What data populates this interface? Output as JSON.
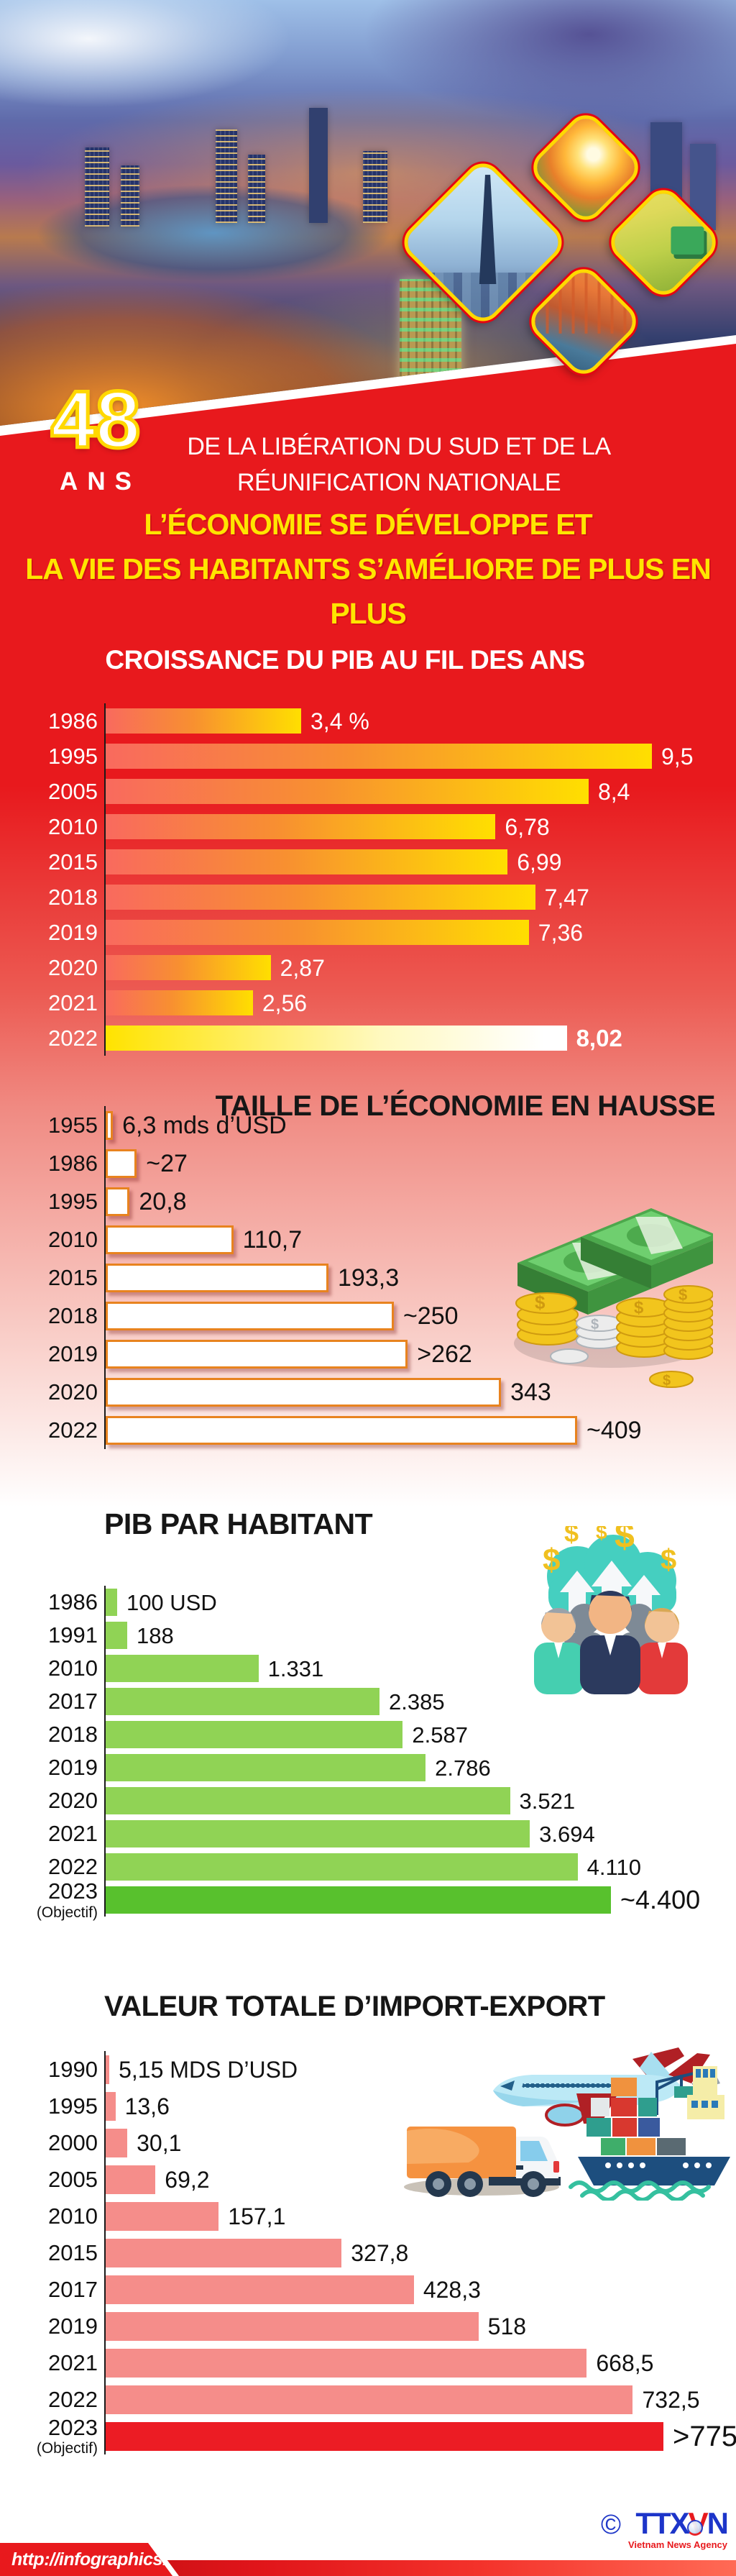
{
  "header": {
    "years_number": "48",
    "years_label": "ANS",
    "dedication_line1": "DE LA LIBÉRATION DU SUD ET DE LA",
    "dedication_line2": "RÉUNIFICATION NATIONALE",
    "banner_line1": "L’ÉCONOMIE SE DÉVELOPPE ET",
    "banner_line2": "LA VIE DES HABITANTS S’AMÉLIORE DE PLUS EN PLUS"
  },
  "photo": {
    "icons": [
      "city-night-panorama",
      "skyscraper-photo",
      "welding-photo",
      "harvest-photo",
      "port-photo"
    ]
  },
  "colors": {
    "red": "#e8191d",
    "banner_yellow": "#ffe500",
    "diamond_border_yellow": "#ffd900",
    "diamond_ring_red": "#e30613",
    "bar_gradient_start": "#f96a5e",
    "bar_gradient_end": "#ffdf00",
    "bar_white_border_orange": "#e8831f",
    "green_bar": "#90d355",
    "green_bar_dark": "#58c12d",
    "salmon_bar": "#f58d8a",
    "red_bar": "#ec1c24",
    "logo_blue": "#1d35c9"
  },
  "chart_data": [
    {
      "id": "gdp-growth",
      "type": "bar",
      "orientation": "horizontal",
      "title": "CROISSANCE DU PIB AU FIL DES ANS",
      "unit": "%",
      "xmax": 9.5,
      "grid": false,
      "rows": [
        {
          "year": "1986",
          "value": 3.4,
          "label": "3,4 %"
        },
        {
          "year": "1995",
          "value": 9.5,
          "label": "9,5"
        },
        {
          "year": "2005",
          "value": 8.4,
          "label": "8,4"
        },
        {
          "year": "2010",
          "value": 6.78,
          "label": "6,78"
        },
        {
          "year": "2015",
          "value": 6.99,
          "label": "6,99"
        },
        {
          "year": "2018",
          "value": 7.47,
          "label": "7,47"
        },
        {
          "year": "2019",
          "value": 7.36,
          "label": "7,36"
        },
        {
          "year": "2020",
          "value": 2.87,
          "label": "2,87"
        },
        {
          "year": "2021",
          "value": 2.56,
          "label": "2,56"
        },
        {
          "year": "2022",
          "value": 8.02,
          "label": "8,02",
          "highlight": true
        }
      ]
    },
    {
      "id": "economy-size",
      "type": "bar",
      "orientation": "horizontal",
      "title": "TAILLE DE L’ÉCONOMIE EN HAUSSE",
      "unit": "mds d’USD",
      "xmax": 409,
      "grid": false,
      "rows": [
        {
          "year": "1955",
          "value": 6.3,
          "label": "6,3 mds d’USD"
        },
        {
          "year": "1986",
          "value": 27,
          "label": "~27"
        },
        {
          "year": "1995",
          "value": 20.8,
          "label": "20,8"
        },
        {
          "year": "2010",
          "value": 110.7,
          "label": "110,7"
        },
        {
          "year": "2015",
          "value": 193.3,
          "label": "193,3"
        },
        {
          "year": "2018",
          "value": 250,
          "label": "~250"
        },
        {
          "year": "2019",
          "value": 262,
          "label": ">262"
        },
        {
          "year": "2020",
          "value": 343,
          "label": "343"
        },
        {
          "year": "2022",
          "value": 409,
          "label": "~409"
        }
      ]
    },
    {
      "id": "gdp-per-capita",
      "type": "bar",
      "orientation": "horizontal",
      "title": "PIB PAR HABITANT",
      "unit": "USD",
      "xmax": 4400,
      "grid": false,
      "rows": [
        {
          "year": "1986",
          "value": 100,
          "label": "100 USD"
        },
        {
          "year": "1991",
          "value": 188,
          "label": "188"
        },
        {
          "year": "2010",
          "value": 1331,
          "label": "1.331"
        },
        {
          "year": "2017",
          "value": 2385,
          "label": "2.385"
        },
        {
          "year": "2018",
          "value": 2587,
          "label": "2.587"
        },
        {
          "year": "2019",
          "value": 2786,
          "label": "2.786"
        },
        {
          "year": "2020",
          "value": 3521,
          "label": "3.521"
        },
        {
          "year": "2021",
          "value": 3694,
          "label": "3.694"
        },
        {
          "year": "2022",
          "value": 4110,
          "label": "4.110"
        },
        {
          "year": "2023",
          "sublabel": "(Objectif)",
          "value": 4400,
          "label": "~4.400",
          "highlight": true
        }
      ]
    },
    {
      "id": "import-export",
      "type": "bar",
      "orientation": "horizontal",
      "title": "VALEUR TOTALE D’IMPORT-EXPORT",
      "unit": "MDS D’USD",
      "xmax": 775,
      "grid": false,
      "rows": [
        {
          "year": "1990",
          "value": 5.15,
          "label": "5,15 MDS D’USD"
        },
        {
          "year": "1995",
          "value": 13.6,
          "label": "13,6"
        },
        {
          "year": "2000",
          "value": 30.1,
          "label": "30,1"
        },
        {
          "year": "2005",
          "value": 69.2,
          "label": "69,2"
        },
        {
          "year": "2010",
          "value": 157.1,
          "label": "157,1"
        },
        {
          "year": "2015",
          "value": 327.8,
          "label": "327,8"
        },
        {
          "year": "2017",
          "value": 428.3,
          "label": "428,3"
        },
        {
          "year": "2019",
          "value": 518,
          "label": "518"
        },
        {
          "year": "2021",
          "value": 668.5,
          "label": "668,5"
        },
        {
          "year": "2022",
          "value": 732.5,
          "label": "732,5"
        },
        {
          "year": "2023",
          "sublabel": "(Objectif)",
          "value": 775,
          "label": ">775",
          "highlight": true
        }
      ]
    }
  ],
  "footer": {
    "url": "http://infographics.vn",
    "copyright": "©",
    "logo": {
      "ttx": "TTX",
      "v": "V",
      "n": "N",
      "tagline": "Vietnam News Agency"
    }
  }
}
